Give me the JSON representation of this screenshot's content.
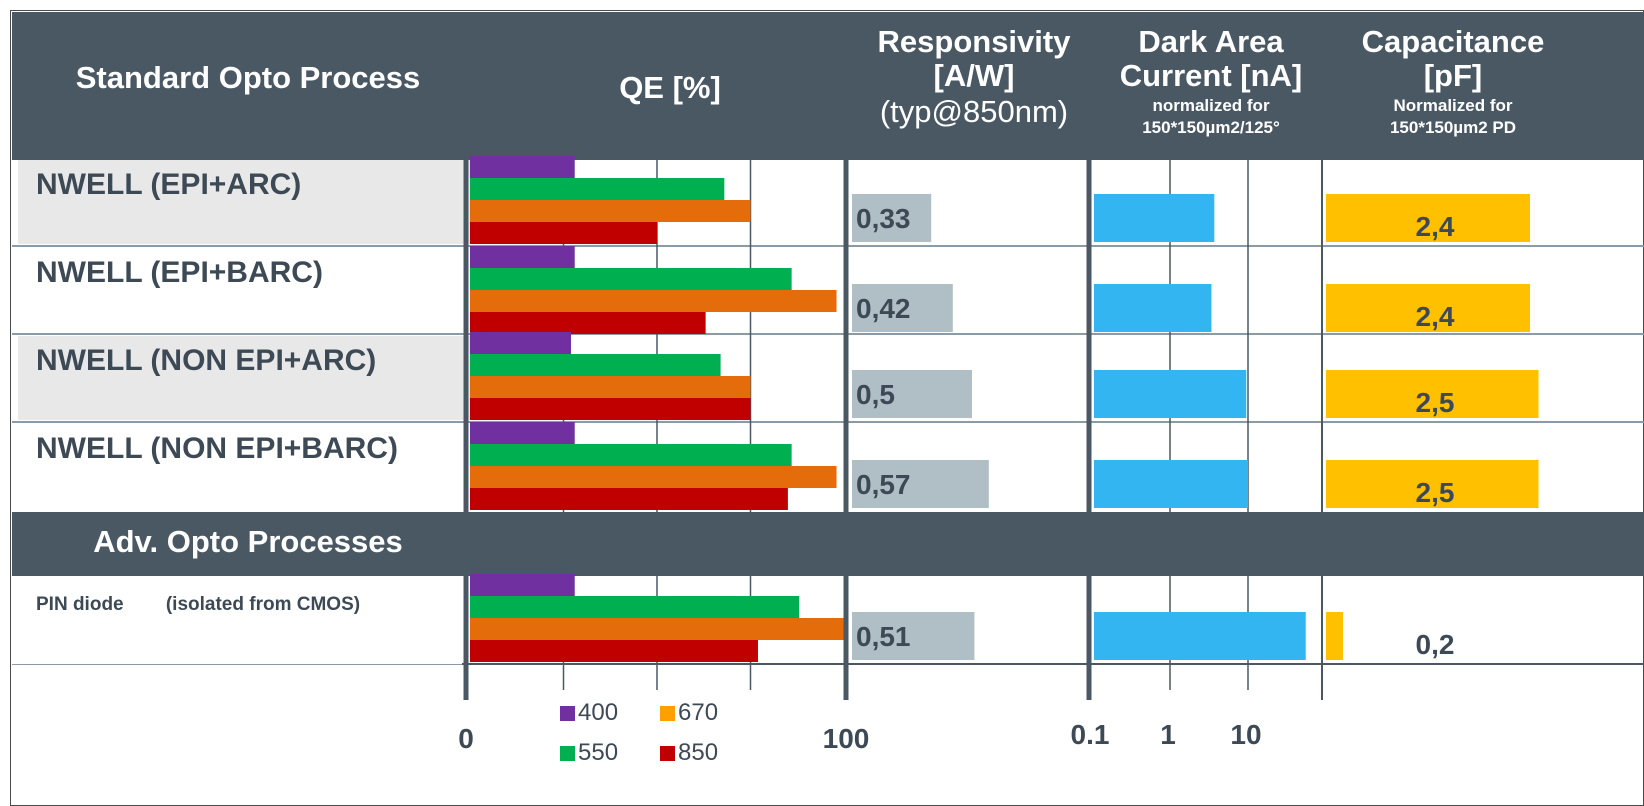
{
  "headers": {
    "process": "Standard Opto Process",
    "qe": "QE  [%]",
    "resp_line1": "Responsivity",
    "resp_line2": "[A/W]",
    "resp_line3": "(typ@850nm)",
    "dark_line1": "Dark Area",
    "dark_line2": "Current [nA]",
    "dark_line3": "normalized for",
    "dark_line4": "150*150µm2/125°",
    "cap_line1": "Capacitance",
    "cap_line2": "[pF]",
    "cap_line3": "Normalized for",
    "cap_line4": "150*150µm2 PD"
  },
  "section2": "Adv. Opto Processes",
  "axes": {
    "qe_ticks": [
      "0",
      "100"
    ],
    "dark_ticks": [
      "0.1",
      "1",
      "10"
    ]
  },
  "colors": {
    "header_bg": "#4a5864",
    "row_alt_bg": "#e8e8e8",
    "qe_400": "#7030a0",
    "qe_550": "#00b050",
    "qe_670": "#e46c0a",
    "qe_850": "#c00000",
    "resp_bar": "#b0bec6",
    "dark_bar": "#33b5f2",
    "cap_bar": "#ffc000",
    "legend_670": "#ffa000"
  },
  "chart_data": {
    "type": "bar",
    "categories": [
      "NWELL (EPI+ARC)",
      "NWELL (EPI+BARC)",
      "NWELL (NON EPI+ARC)",
      "NWELL (NON EPI+BARC)",
      "PIN diode        (isolated from CMOS)"
    ],
    "qe": {
      "xlim": [
        0,
        100
      ],
      "legend": [
        "400",
        "670",
        "550",
        "850"
      ],
      "series": [
        {
          "name": "400",
          "values": [
            28,
            28,
            27,
            28,
            28
          ]
        },
        {
          "name": "550",
          "values": [
            68,
            86,
            67,
            86,
            88
          ]
        },
        {
          "name": "670",
          "values": [
            75,
            98,
            75,
            98,
            100
          ]
        },
        {
          "name": "850",
          "values": [
            50,
            63,
            75,
            85,
            77
          ]
        }
      ]
    },
    "responsivity": {
      "values": [
        0.33,
        0.42,
        0.5,
        0.57,
        0.51
      ],
      "labels": [
        "0,33",
        "0,42",
        "0,5",
        "0,57",
        "0,51"
      ]
    },
    "dark_current": {
      "scale": "log",
      "xlim": [
        0.1,
        100
      ],
      "values": [
        3.7,
        3.4,
        9.5,
        10,
        55
      ]
    },
    "capacitance": {
      "values": [
        2.4,
        2.4,
        2.5,
        2.5,
        0.2
      ],
      "labels": [
        "2,4",
        "2,4",
        "2,5",
        "2,5",
        "0,2"
      ]
    }
  }
}
